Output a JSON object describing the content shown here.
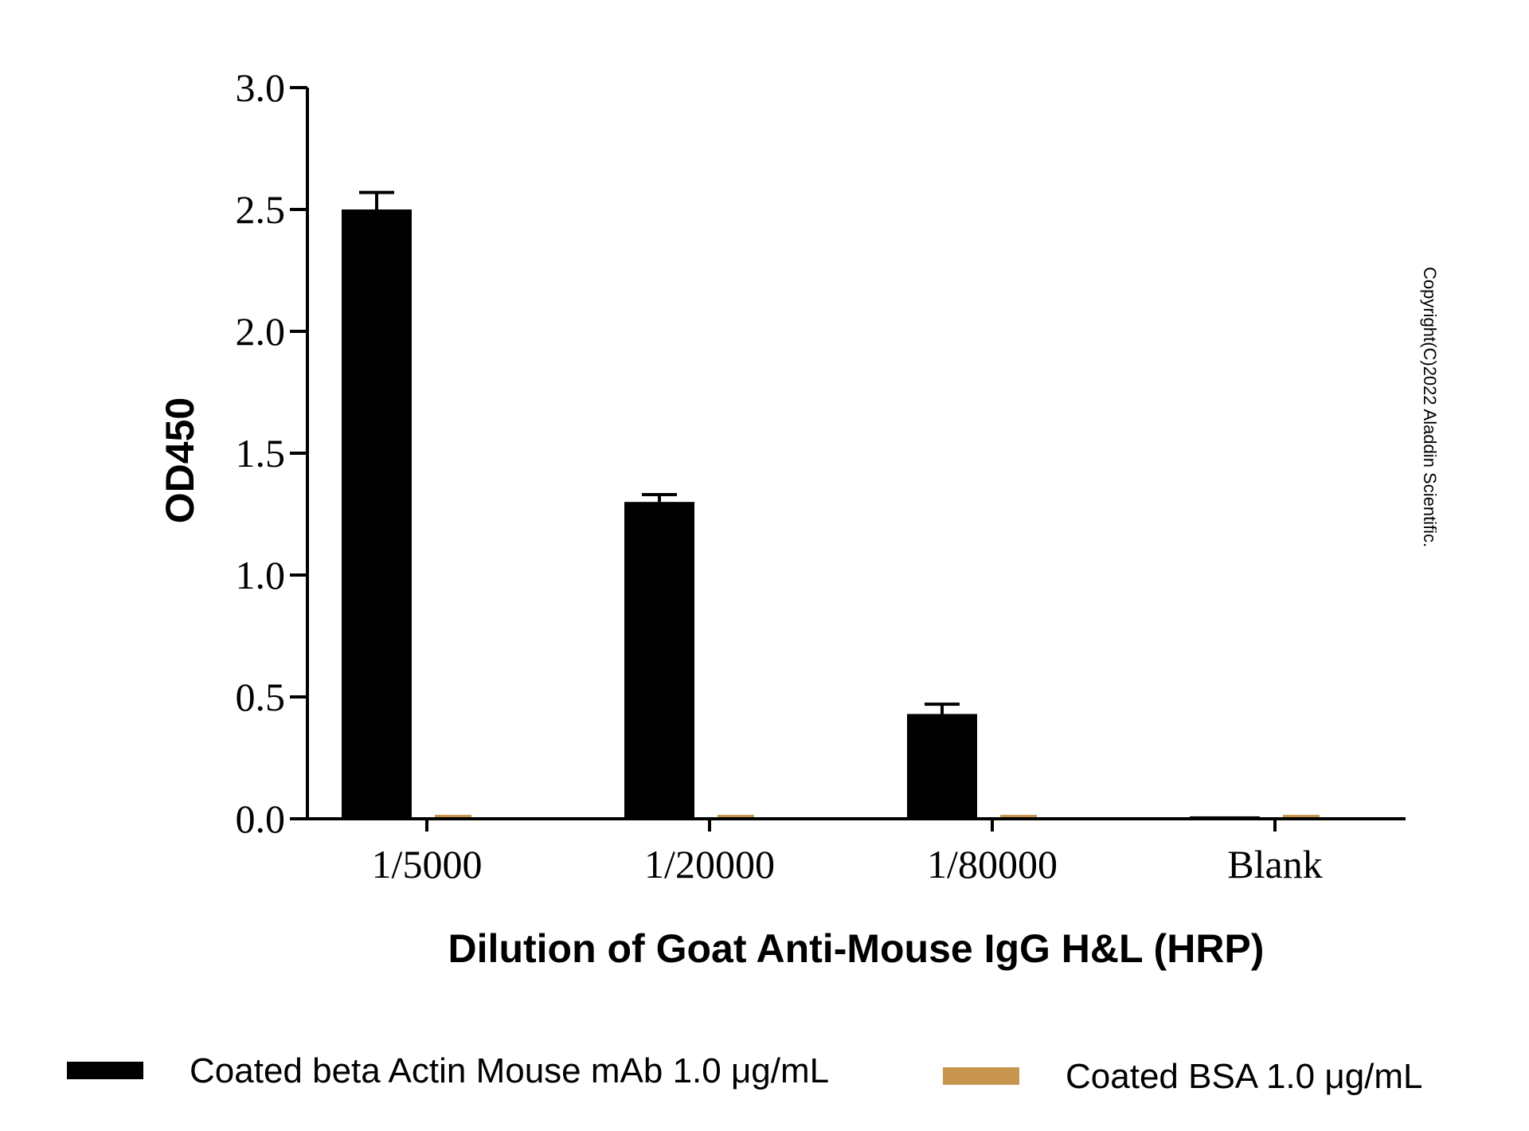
{
  "chart_data": {
    "type": "bar",
    "categories": [
      "1/5000",
      "1/20000",
      "1/80000",
      "Blank"
    ],
    "series": [
      {
        "name": "Coated beta Actin Mouse mAb 1.0 μg/mL",
        "color": "#000000",
        "values": [
          2.5,
          1.3,
          0.43,
          0.01
        ],
        "error": [
          0.07,
          0.03,
          0.04,
          0.0
        ]
      },
      {
        "name": "Coated BSA 1.0 μg/mL",
        "color": "#c8954f",
        "values": [
          0.01,
          0.0,
          0.0,
          0.0
        ],
        "error": [
          0.0,
          0.0,
          0.0,
          0.0
        ]
      }
    ],
    "xlabel": "Dilution of Goat Anti-Mouse IgG H&L (HRP)",
    "ylabel": "OD450",
    "ylim": [
      0,
      3.0
    ],
    "yticks": [
      "0.0",
      "0.5",
      "1.0",
      "1.5",
      "2.0",
      "2.5",
      "3.0"
    ],
    "legend_position": "bottom",
    "grid": false
  },
  "copyright": "Copyright(C)2022 Aladdin Scientific."
}
